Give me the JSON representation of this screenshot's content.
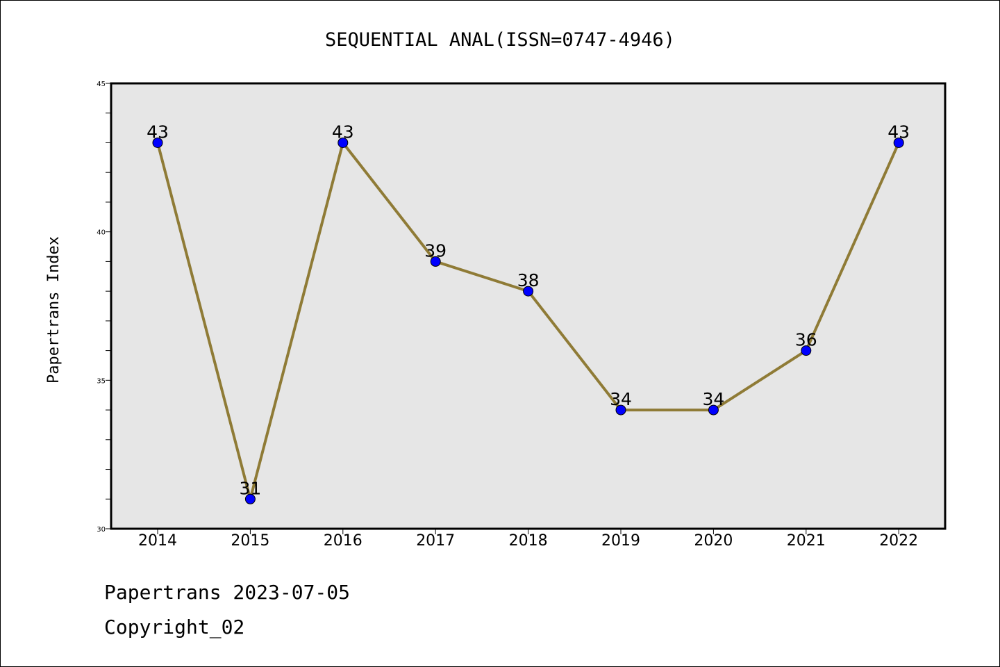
{
  "chart_data": {
    "type": "line",
    "title": "SEQUENTIAL ANAL(ISSN=0747-4946)",
    "ylabel": "Papertrans Index",
    "xlabel": "",
    "categories": [
      "2014",
      "2015",
      "2016",
      "2017",
      "2018",
      "2019",
      "2020",
      "2021",
      "2022"
    ],
    "series": [
      {
        "values": [
          43,
          31,
          43,
          39,
          38,
          34,
          34,
          36,
          43
        ]
      }
    ],
    "ylim": [
      30,
      45
    ],
    "yticks": [
      "30",
      "35",
      "40",
      "45"
    ],
    "grid": false,
    "line_color": "#8f7b36",
    "marker_color": "#0000ff",
    "plot_background": "#e6e6e6"
  },
  "footer": {
    "line1": "Papertrans 2023-07-05",
    "line2": "Copyright_02"
  }
}
